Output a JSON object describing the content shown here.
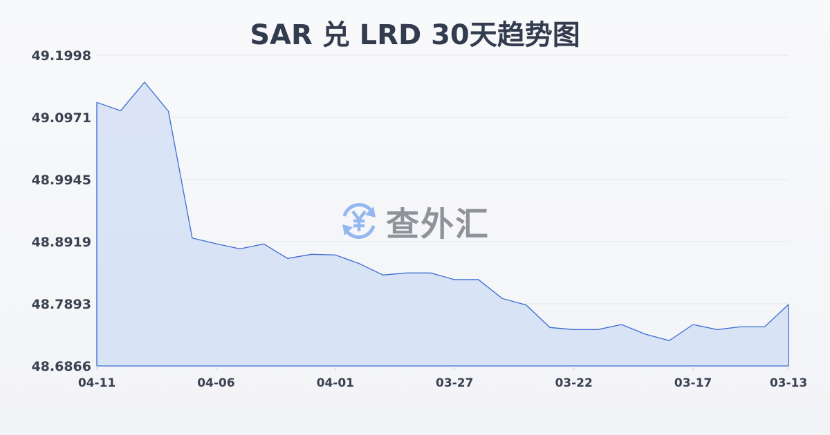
{
  "chart_data": {
    "type": "area",
    "title": "SAR 兑 LRD 30天趋势图",
    "xlabel": "",
    "ylabel": "",
    "x": [
      "04-11",
      "04-10",
      "04-09",
      "04-08",
      "04-07",
      "04-06",
      "04-05",
      "04-04",
      "04-03",
      "04-02",
      "04-01",
      "03-31",
      "03-30",
      "03-29",
      "03-28",
      "03-27",
      "03-26",
      "03-25",
      "03-24",
      "03-23",
      "03-22",
      "03-21",
      "03-20",
      "03-19",
      "03-18",
      "03-17",
      "03-16",
      "03-15",
      "03-14",
      "03-13"
    ],
    "values": [
      49.1219,
      49.1082,
      49.1553,
      49.1074,
      48.8979,
      48.8885,
      48.8801,
      48.8881,
      48.8642,
      48.871,
      48.8699,
      48.8557,
      48.8368,
      48.8402,
      48.8402,
      48.8292,
      48.8292,
      48.798,
      48.7873,
      48.7501,
      48.7467,
      48.7467,
      48.755,
      48.7391,
      48.7285,
      48.755,
      48.7467,
      48.7513,
      48.7513,
      48.7881
    ],
    "xticks": [
      "04-11",
      "04-06",
      "04-01",
      "03-27",
      "03-22",
      "03-17",
      "03-13"
    ],
    "yticks": [
      "49.1998",
      "49.0971",
      "48.9945",
      "48.8919",
      "48.7893",
      "48.6866"
    ],
    "ylim": [
      48.6866,
      49.1998
    ],
    "grid": true,
    "colors": {
      "line": "#3a6bd0",
      "fill": "#d6e1f5",
      "title": "#333c4e"
    }
  },
  "watermark": {
    "text": "查外汇",
    "icon": "yen-exchange-icon"
  }
}
